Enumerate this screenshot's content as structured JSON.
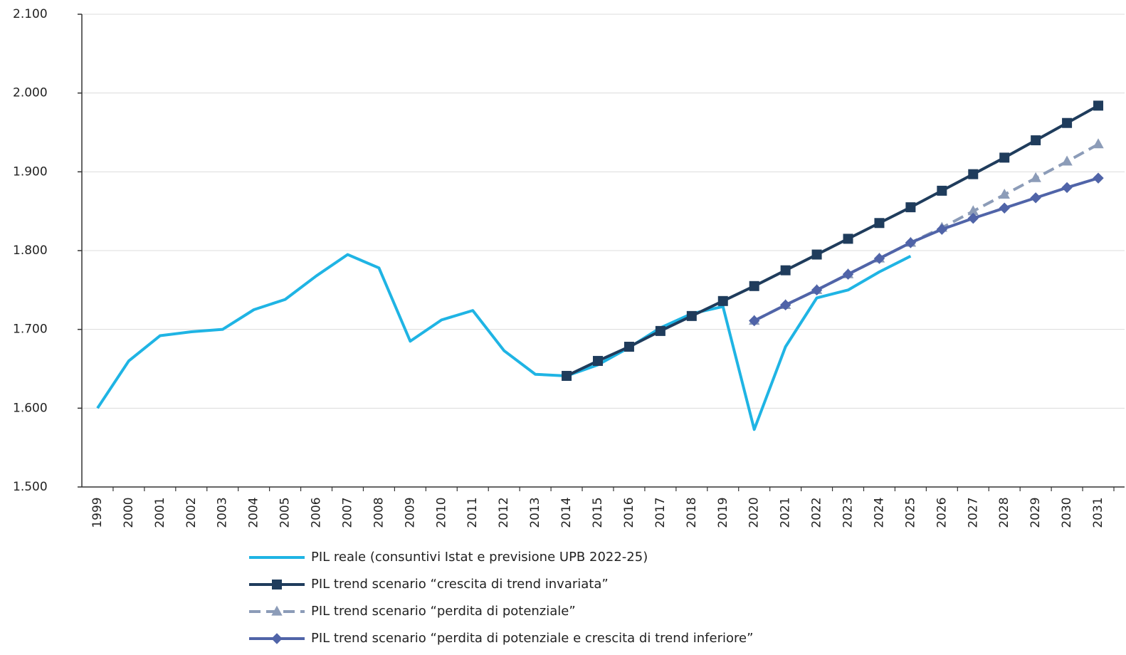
{
  "chart_data": {
    "type": "line",
    "categories": [
      "1999",
      "2000",
      "2001",
      "2002",
      "2003",
      "2004",
      "2005",
      "2006",
      "2007",
      "2008",
      "2009",
      "2010",
      "2011",
      "2012",
      "2013",
      "2014",
      "2015",
      "2016",
      "2017",
      "2018",
      "2019",
      "2020",
      "2021",
      "2022",
      "2023",
      "2024",
      "2025",
      "2026",
      "2027",
      "2028",
      "2029",
      "2030",
      "2031"
    ],
    "ylim": [
      1500,
      2100
    ],
    "yticks": [
      {
        "value": 1500,
        "label": "1.500"
      },
      {
        "value": 1600,
        "label": "1.600"
      },
      {
        "value": 1700,
        "label": "1.700"
      },
      {
        "value": 1800,
        "label": "1.800"
      },
      {
        "value": 1900,
        "label": "1.900"
      },
      {
        "value": 2000,
        "label": "2.000"
      },
      {
        "value": 2100,
        "label": "2.100"
      }
    ],
    "grid": true,
    "legend": "bottom",
    "series": [
      {
        "name": "PIL reale (consuntivi Istat e previsione UPB 2022-25)",
        "color": "#1fb4e4",
        "marker": "none",
        "dash": false,
        "values": [
          1600,
          1660,
          1692,
          1697,
          1700,
          1725,
          1738,
          1768,
          1795,
          1778,
          1685,
          1712,
          1724,
          1673,
          1643,
          1641,
          1655,
          1677,
          1702,
          1720,
          1729,
          1573,
          1678,
          1740,
          1750,
          1773,
          1793,
          null,
          null,
          null,
          null,
          null,
          null
        ]
      },
      {
        "name": "PIL trend scenario “crescita di trend invariata”",
        "color": "#1f3c5c",
        "marker": "square",
        "dash": false,
        "values": [
          null,
          null,
          null,
          null,
          null,
          null,
          null,
          null,
          null,
          null,
          null,
          null,
          null,
          null,
          null,
          1641,
          1660,
          1678,
          1698,
          1717,
          1736,
          1755,
          1775,
          1795,
          1815,
          1835,
          1855,
          1876,
          1897,
          1918,
          1940,
          1962,
          1984
        ]
      },
      {
        "name": "PIL trend scenario “perdita di potenziale”",
        "color": "#8c9cb8",
        "marker": "triangle",
        "dash": true,
        "values": [
          null,
          null,
          null,
          null,
          null,
          null,
          null,
          null,
          null,
          null,
          null,
          null,
          null,
          null,
          null,
          null,
          null,
          null,
          null,
          null,
          null,
          1711,
          1731,
          1750,
          1770,
          1790,
          1810,
          1829,
          1850,
          1871,
          1892,
          1913,
          1935
        ]
      },
      {
        "name": "PIL trend scenario “perdita di potenziale e crescita di trend inferiore”",
        "color": "#5064a8",
        "marker": "diamond",
        "dash": false,
        "values": [
          null,
          null,
          null,
          null,
          null,
          null,
          null,
          null,
          null,
          null,
          null,
          null,
          null,
          null,
          null,
          null,
          null,
          null,
          null,
          null,
          null,
          1711,
          1731,
          1750,
          1770,
          1790,
          1810,
          1827,
          1841,
          1854,
          1867,
          1880,
          1892
        ]
      }
    ]
  }
}
